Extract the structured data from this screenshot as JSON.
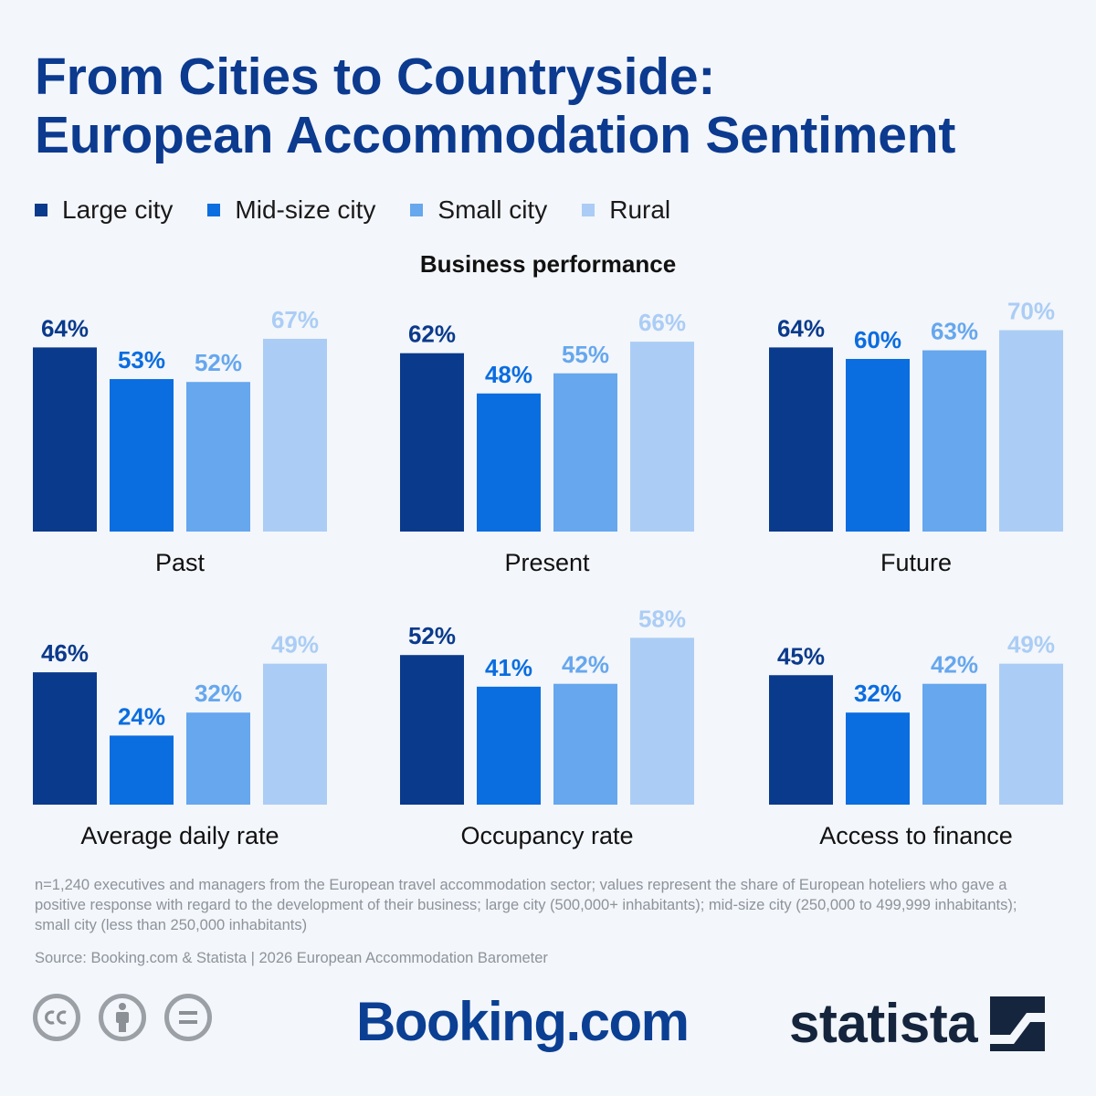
{
  "title": {
    "line1": "From Cities to Countryside:",
    "line2": "European Accommodation Sentiment"
  },
  "legend": [
    {
      "label": "Large city",
      "color": "#0a3a8c"
    },
    {
      "label": "Mid-size city",
      "color": "#0a6de0"
    },
    {
      "label": "Small city",
      "color": "#66a7ee"
    },
    {
      "label": "Rural",
      "color": "#abcdf5"
    }
  ],
  "section_title": "Business performance",
  "chart_data": [
    {
      "type": "bar",
      "title": "Past",
      "categories": [
        "Large city",
        "Mid-size city",
        "Small city",
        "Rural"
      ],
      "values": [
        64,
        53,
        52,
        67
      ],
      "value_labels": [
        "64%",
        "53%",
        "52%",
        "67%"
      ],
      "ylim": [
        0,
        70
      ]
    },
    {
      "type": "bar",
      "title": "Present",
      "categories": [
        "Large city",
        "Mid-size city",
        "Small city",
        "Rural"
      ],
      "values": [
        62,
        48,
        55,
        66
      ],
      "value_labels": [
        "62%",
        "48%",
        "55%",
        "66%"
      ],
      "ylim": [
        0,
        70
      ]
    },
    {
      "type": "bar",
      "title": "Future",
      "categories": [
        "Large city",
        "Mid-size city",
        "Small city",
        "Rural"
      ],
      "values": [
        64,
        60,
        63,
        70
      ],
      "value_labels": [
        "64%",
        "60%",
        "63%",
        "70%"
      ],
      "ylim": [
        0,
        70
      ]
    },
    {
      "type": "bar",
      "title": "Average daily rate",
      "categories": [
        "Large city",
        "Mid-size city",
        "Small city",
        "Rural"
      ],
      "values": [
        46,
        24,
        32,
        49
      ],
      "value_labels": [
        "46%",
        "24%",
        "32%",
        "49%"
      ],
      "ylim": [
        0,
        70
      ]
    },
    {
      "type": "bar",
      "title": "Occupancy rate",
      "categories": [
        "Large city",
        "Mid-size city",
        "Small city",
        "Rural"
      ],
      "values": [
        52,
        41,
        42,
        58
      ],
      "value_labels": [
        "52%",
        "41%",
        "42%",
        "58%"
      ],
      "ylim": [
        0,
        70
      ]
    },
    {
      "type": "bar",
      "title": "Access to finance",
      "categories": [
        "Large city",
        "Mid-size city",
        "Small city",
        "Rural"
      ],
      "values": [
        45,
        32,
        42,
        49
      ],
      "value_labels": [
        "45%",
        "32%",
        "42%",
        "49%"
      ],
      "ylim": [
        0,
        70
      ]
    }
  ],
  "note": "n=1,240 executives and managers from the European travel accommodation sector; values represent the share of European hoteliers who gave a positive response with regard to the development of their business; large city (500,000+ inhabitants); mid-size city (250,000 to 499,999 inhabitants); small city (less than 250,000 inhabitants)",
  "source": "Source: Booking.com & Statista | 2026 European Accommodation Barometer",
  "logos": {
    "booking": "Booking.com",
    "statista": "statista"
  },
  "license_icons": [
    "cc-icon",
    "attribution-icon",
    "no-derivatives-icon"
  ]
}
